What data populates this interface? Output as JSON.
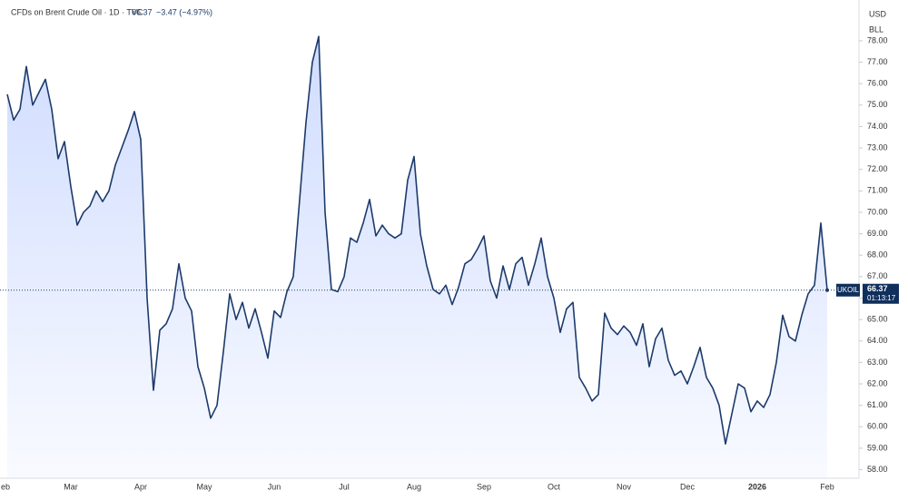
{
  "header": {
    "title": "CFDs on Brent Crude Oil · 1D · TVC",
    "change": "−3.47 (−4.97%)",
    "currency": "USD",
    "unit": "BLL",
    "symbol": "UKOIL",
    "countdown": "01:13:17"
  },
  "chart_data": {
    "type": "area",
    "categories": [
      "eb",
      null,
      null,
      null,
      null,
      null,
      null,
      null,
      null,
      null,
      "Mar",
      null,
      null,
      null,
      null,
      null,
      null,
      null,
      null,
      null,
      null,
      "Apr",
      null,
      null,
      null,
      null,
      null,
      null,
      null,
      null,
      null,
      "May",
      null,
      null,
      null,
      null,
      null,
      null,
      null,
      null,
      null,
      null,
      "Jun",
      null,
      null,
      null,
      null,
      null,
      null,
      null,
      null,
      null,
      null,
      "Jul",
      null,
      null,
      null,
      null,
      null,
      null,
      null,
      null,
      null,
      null,
      "Aug",
      null,
      null,
      null,
      null,
      null,
      null,
      null,
      null,
      null,
      null,
      "Sep",
      null,
      null,
      null,
      null,
      null,
      null,
      null,
      null,
      null,
      null,
      "Oct",
      null,
      null,
      null,
      null,
      null,
      null,
      null,
      null,
      null,
      null,
      "Nov",
      null,
      null,
      null,
      null,
      null,
      null,
      null,
      null,
      null,
      "Dec",
      null,
      null,
      null,
      null,
      null,
      null,
      null,
      null,
      null,
      null,
      "2026",
      null,
      null,
      null,
      null,
      null,
      null,
      null,
      null,
      null,
      null,
      "Feb"
    ],
    "values": [
      75.5,
      74.3,
      74.8,
      76.8,
      75.0,
      75.6,
      76.2,
      74.8,
      72.5,
      73.3,
      71.2,
      69.4,
      70.0,
      70.3,
      71.0,
      70.5,
      71.0,
      72.2,
      73.0,
      73.8,
      74.7,
      73.4,
      66.0,
      61.7,
      64.5,
      64.8,
      65.5,
      67.6,
      66.0,
      65.4,
      62.8,
      61.8,
      60.4,
      61.0,
      63.5,
      66.2,
      65.0,
      65.8,
      64.6,
      65.5,
      64.4,
      63.2,
      65.4,
      65.1,
      66.3,
      67.0,
      70.6,
      74.2,
      77.0,
      78.2,
      70.0,
      66.4,
      66.3,
      67.0,
      68.8,
      68.6,
      69.5,
      70.6,
      68.9,
      69.4,
      69.0,
      68.8,
      69.0,
      71.5,
      72.6,
      69.0,
      67.5,
      66.4,
      66.2,
      66.6,
      65.7,
      66.5,
      67.6,
      67.8,
      68.3,
      68.9,
      66.8,
      66.0,
      67.5,
      66.4,
      67.6,
      67.9,
      66.6,
      67.6,
      68.8,
      67.0,
      66.0,
      64.4,
      65.5,
      65.8,
      62.3,
      61.8,
      61.2,
      61.5,
      65.3,
      64.6,
      64.3,
      64.7,
      64.4,
      63.8,
      64.8,
      62.8,
      64.1,
      64.6,
      63.1,
      62.4,
      62.6,
      62.0,
      62.8,
      63.7,
      62.3,
      61.8,
      61.0,
      59.2,
      60.6,
      62.0,
      61.8,
      60.7,
      61.2,
      60.9,
      61.5,
      63.0,
      65.2,
      64.2,
      64.0,
      65.2,
      66.2,
      66.6,
      69.5,
      66.37
    ],
    "color": "#1c3a6b",
    "ylim": [
      57.6,
      79.9
    ],
    "yticks": [
      {
        "value": 58,
        "label": "58.00"
      },
      {
        "value": 59,
        "label": "59.00"
      },
      {
        "value": 60,
        "label": "60.00"
      },
      {
        "value": 61,
        "label": "61.00"
      },
      {
        "value": 62,
        "label": "62.00"
      },
      {
        "value": 63,
        "label": "63.00"
      },
      {
        "value": 64,
        "label": "64.00"
      },
      {
        "value": 65,
        "label": "65.00"
      },
      {
        "value": 66,
        "label": "66.00"
      },
      {
        "value": 67,
        "label": "67.00"
      },
      {
        "value": 68,
        "label": "68.00"
      },
      {
        "value": 69,
        "label": "69.00"
      },
      {
        "value": 70,
        "label": "70.00"
      },
      {
        "value": 71,
        "label": "71.00"
      },
      {
        "value": 72,
        "label": "72.00"
      },
      {
        "value": 73,
        "label": "73.00"
      },
      {
        "value": 74,
        "label": "74.00"
      },
      {
        "value": 75,
        "label": "75.00"
      },
      {
        "value": 76,
        "label": "76.00"
      },
      {
        "value": 77,
        "label": "77.00"
      },
      {
        "value": 78,
        "label": "78.00"
      }
    ]
  }
}
